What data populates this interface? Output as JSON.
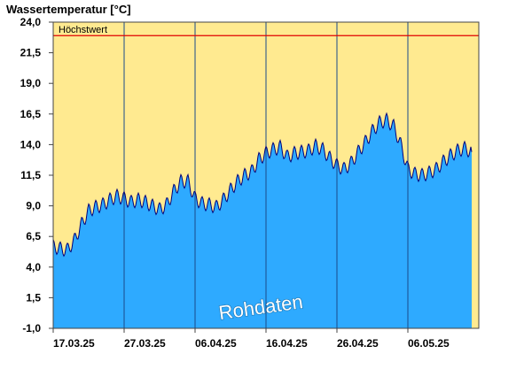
{
  "chart_data": {
    "type": "area",
    "title": "Wassertemperatur [°C]",
    "ylim": [
      -1.0,
      24.0
    ],
    "y_ticks": [
      "24,0",
      "21,5",
      "19,0",
      "16,5",
      "14,0",
      "11,5",
      "9,0",
      "6,5",
      "4,0",
      "1,5",
      "-1,0"
    ],
    "x_ticks": [
      "17.03.25",
      "27.03.25",
      "06.04.25",
      "16.04.25",
      "26.04.25",
      "06.05.25"
    ],
    "x_start": "17.03.25",
    "x_end": "15.05.25",
    "reference_line": {
      "label": "Höchstwert",
      "value": 22.9
    },
    "watermark": "Rohdaten",
    "series": [
      {
        "x": [
          "17.03.25",
          "18.03.25",
          "19.03.25",
          "20.03.25",
          "21.03.25",
          "22.03.25",
          "23.03.25",
          "24.03.25",
          "25.03.25",
          "26.03.25",
          "27.03.25",
          "28.03.25",
          "29.03.25",
          "30.03.25",
          "31.03.25",
          "01.04.25",
          "02.04.25",
          "03.04.25",
          "04.04.25",
          "05.04.25",
          "06.04.25",
          "07.04.25",
          "08.04.25",
          "09.04.25",
          "10.04.25",
          "11.04.25",
          "12.04.25",
          "13.04.25",
          "14.04.25",
          "15.04.25",
          "16.04.25",
          "17.04.25",
          "18.04.25",
          "19.04.25",
          "20.04.25",
          "21.04.25",
          "22.04.25",
          "23.04.25",
          "24.04.25",
          "25.04.25",
          "26.04.25",
          "27.04.25",
          "28.04.25",
          "29.04.25",
          "30.04.25",
          "01.05.25",
          "02.05.25",
          "03.05.25",
          "04.05.25",
          "05.05.25",
          "06.05.25",
          "07.05.25",
          "08.05.25",
          "09.05.25",
          "10.05.25",
          "11.05.25",
          "12.05.25",
          "13.05.25",
          "14.05.25",
          "15.05.25"
        ],
        "y": [
          5.7,
          5.5,
          5.4,
          6.2,
          7.5,
          8.6,
          8.9,
          9.1,
          9.5,
          9.8,
          9.6,
          9.3,
          9.5,
          9.3,
          9.0,
          8.7,
          9.1,
          10.2,
          11.0,
          11.0,
          9.6,
          9.2,
          9.1,
          8.9,
          9.5,
          10.3,
          11.0,
          11.5,
          11.8,
          12.8,
          13.3,
          13.6,
          13.8,
          13.0,
          13.3,
          13.4,
          13.5,
          13.9,
          13.6,
          12.9,
          12.3,
          12.0,
          12.5,
          13.4,
          14.2,
          15.1,
          15.8,
          16.0,
          15.5,
          14.0,
          12.0,
          11.6,
          11.5,
          11.7,
          12.0,
          12.6,
          13.1,
          13.5,
          13.7,
          13.4
        ]
      }
    ],
    "colors": {
      "area": "#2eaaff",
      "line": "#00007a",
      "background": "#ffea90",
      "reference": "#e00000",
      "separator": "#1a4a8a"
    },
    "grid": false
  }
}
